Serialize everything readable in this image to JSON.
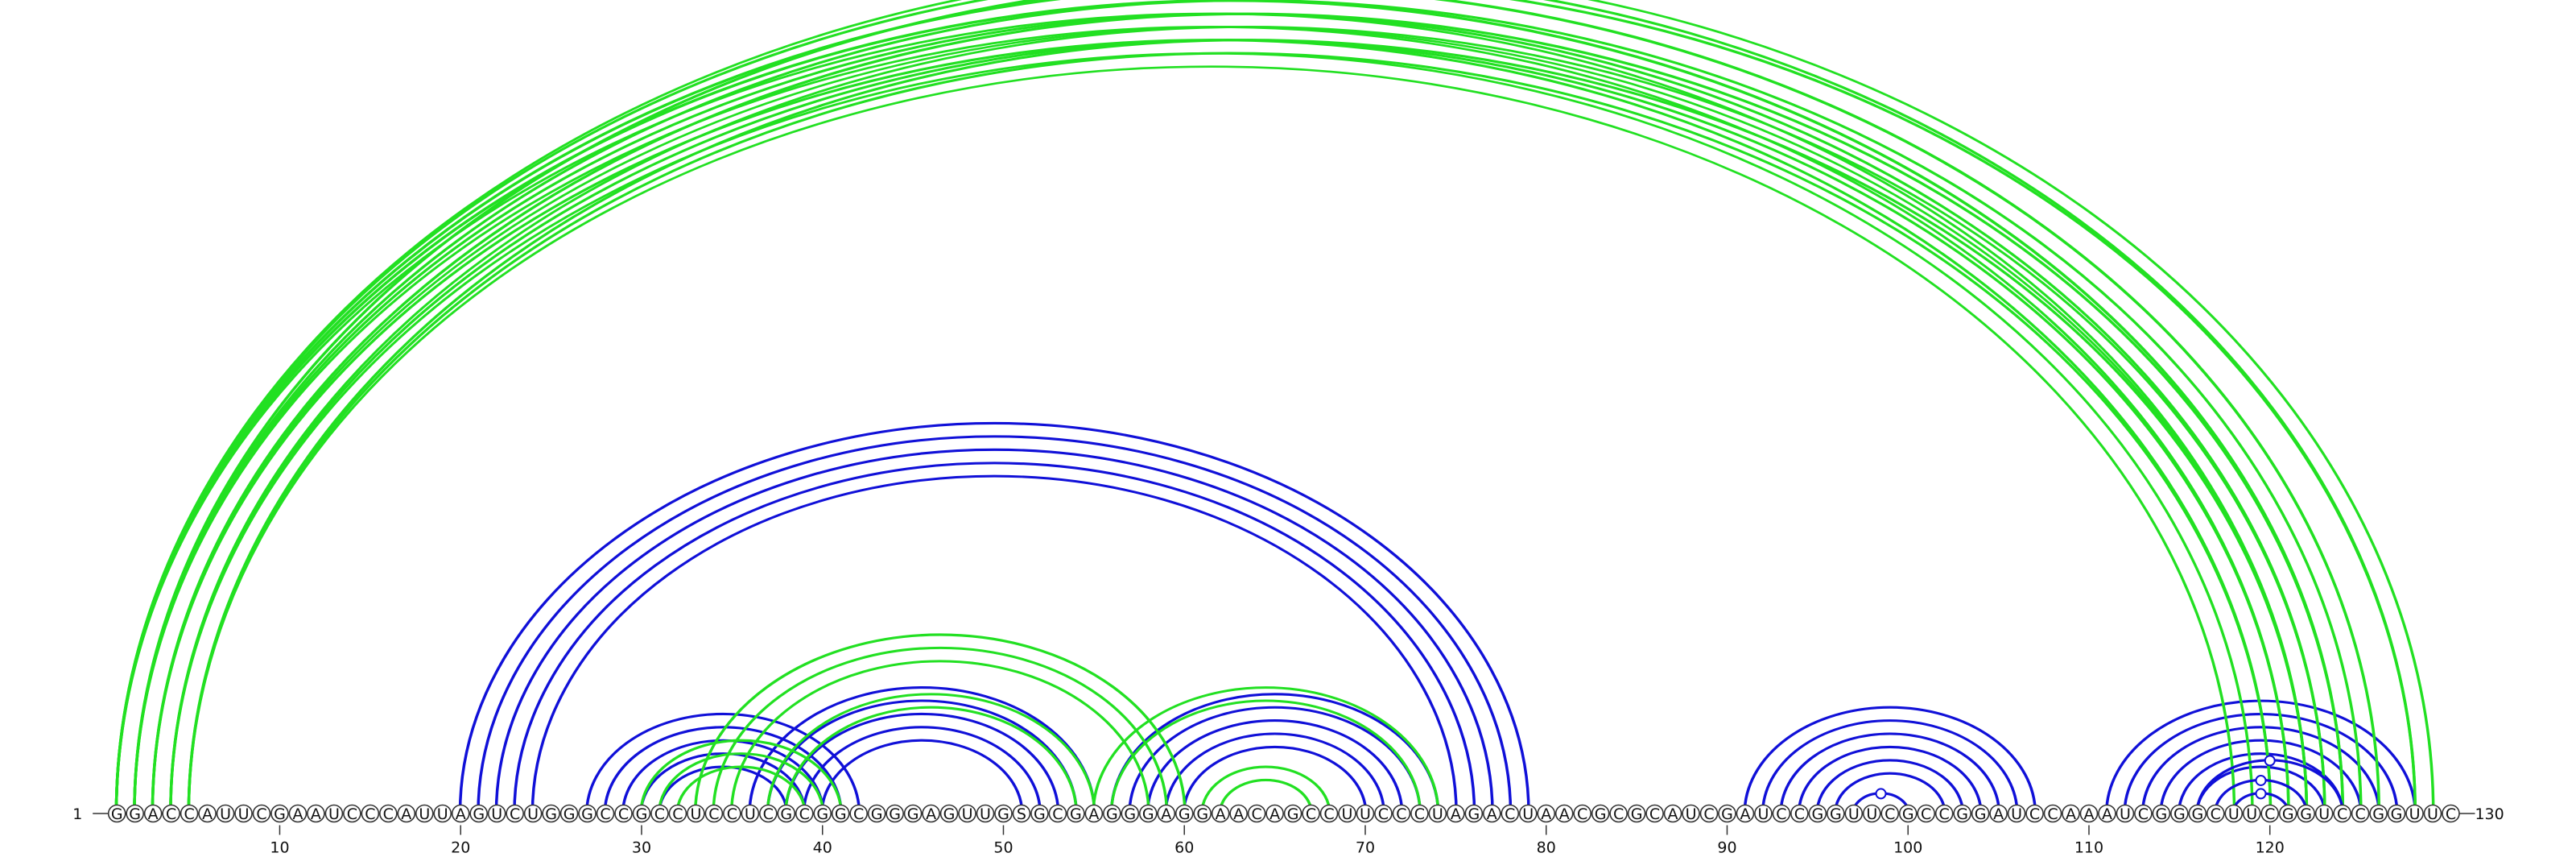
{
  "sequence": "GGACCAUUCGAAUCCCAUUAGUCUGGGCCGCCUCCUCGCGGCGGGAGUUGSGCGAGGGAGGAACAGCCUUCCCUAGACUAACGCGCAUCGAUCCGGUUCGCCGGAUCCAAAUCGGGCUUCGGUCCGGUUC",
  "start_label": "1",
  "end_label": "130",
  "ticks": [
    {
      "pos": 10,
      "label": "10"
    },
    {
      "pos": 20,
      "label": "20"
    },
    {
      "pos": 30,
      "label": "30"
    },
    {
      "pos": 40,
      "label": "40"
    },
    {
      "pos": 50,
      "label": "50"
    },
    {
      "pos": 60,
      "label": "60"
    },
    {
      "pos": 70,
      "label": "70"
    },
    {
      "pos": 80,
      "label": "80"
    },
    {
      "pos": 90,
      "label": "90"
    },
    {
      "pos": 100,
      "label": "100"
    },
    {
      "pos": 110,
      "label": "110"
    },
    {
      "pos": 120,
      "label": "120"
    }
  ],
  "colors": {
    "blue": "#1010d8",
    "green": "#22e022",
    "text": "#111111"
  },
  "helices": [
    {
      "color": "blue",
      "pairs": [
        [
          20,
          79
        ],
        [
          21,
          78
        ],
        [
          22,
          77
        ],
        [
          23,
          76
        ],
        [
          24,
          75
        ]
      ]
    },
    {
      "color": "blue",
      "pairs": [
        [
          27,
          42
        ],
        [
          28,
          41
        ],
        [
          29,
          40
        ],
        [
          30,
          39
        ],
        [
          31,
          38
        ]
      ]
    },
    {
      "color": "blue",
      "pairs": [
        [
          36,
          55
        ],
        [
          37,
          54
        ],
        [
          38,
          53
        ],
        [
          39,
          52
        ],
        [
          40,
          51
        ]
      ]
    },
    {
      "color": "blue",
      "pairs": [
        [
          56,
          74
        ],
        [
          57,
          73
        ],
        [
          58,
          72
        ],
        [
          59,
          71
        ],
        [
          60,
          70
        ]
      ]
    },
    {
      "color": "blue",
      "pairs": [
        [
          91,
          107
        ],
        [
          92,
          106
        ],
        [
          93,
          105
        ],
        [
          94,
          104
        ],
        [
          95,
          103
        ],
        [
          96,
          102
        ]
      ]
    },
    {
      "color": "blue",
      "pairs": [
        [
          111,
          128
        ],
        [
          112,
          127
        ],
        [
          113,
          126
        ],
        [
          114,
          125
        ],
        [
          115,
          124
        ],
        [
          116,
          123
        ]
      ]
    },
    {
      "color": "green",
      "pairs": [
        [
          1,
          122
        ],
        [
          2,
          121
        ],
        [
          3,
          120
        ],
        [
          4,
          119
        ],
        [
          5,
          118
        ]
      ]
    },
    {
      "color": "green",
      "pairs": [
        [
          1,
          124
        ],
        [
          2,
          123
        ],
        [
          3,
          122
        ],
        [
          4,
          121
        ],
        [
          5,
          120
        ]
      ]
    },
    {
      "color": "green",
      "pairs": [
        [
          1,
          126
        ],
        [
          2,
          125
        ],
        [
          3,
          124
        ],
        [
          4,
          123
        ],
        [
          5,
          122
        ]
      ]
    },
    {
      "color": "green",
      "pairs": [
        [
          1,
          129
        ],
        [
          2,
          128
        ]
      ]
    },
    {
      "color": "green",
      "pairs": [
        [
          30,
          41
        ],
        [
          31,
          40
        ],
        [
          32,
          39
        ]
      ]
    },
    {
      "color": "green",
      "pairs": [
        [
          33,
          60
        ],
        [
          34,
          59
        ],
        [
          35,
          58
        ]
      ]
    },
    {
      "color": "green",
      "pairs": [
        [
          37,
          55
        ],
        [
          38,
          54
        ]
      ]
    },
    {
      "color": "green",
      "pairs": [
        [
          55,
          74
        ],
        [
          56,
          73
        ]
      ]
    },
    {
      "color": "green",
      "pairs": [
        [
          61,
          68
        ],
        [
          62,
          67
        ]
      ]
    }
  ],
  "marker_arcs": [
    {
      "color": "green",
      "pair": [
        1,
        128
      ]
    },
    {
      "color": "blue",
      "pair": [
        118,
        121
      ]
    },
    {
      "color": "blue",
      "pair": [
        117,
        122
      ]
    },
    {
      "color": "blue",
      "pair": [
        116,
        124
      ]
    },
    {
      "color": "blue",
      "pair": [
        97,
        100
      ]
    }
  ]
}
